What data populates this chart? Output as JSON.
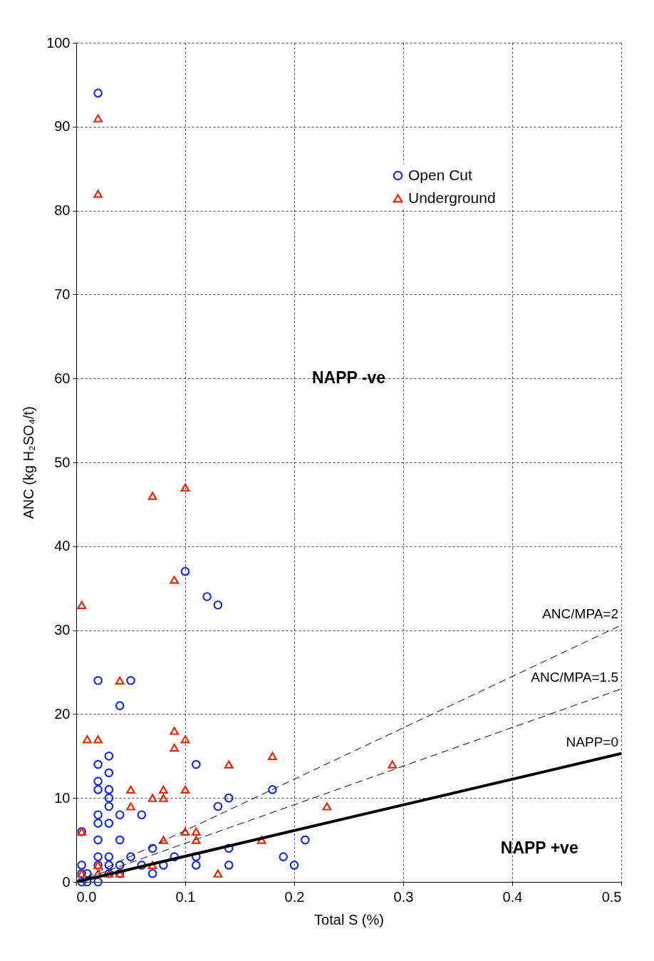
{
  "chart_data": {
    "type": "scatter",
    "xlabel": "Total S (%)",
    "ylabel": "ANC (kg H₂SO₄/t)",
    "xlim": [
      0,
      0.5
    ],
    "ylim": [
      0,
      100
    ],
    "xticks": [
      {
        "value": 0,
        "label": "0.0"
      },
      0.1,
      0.2,
      0.3,
      0.4,
      0.5
    ],
    "yticks": [
      0,
      10,
      20,
      30,
      40,
      50,
      60,
      70,
      80,
      90,
      100
    ],
    "grid": true,
    "legend": "top right",
    "annotations": [
      "NAPP -ve",
      "NAPP +ve"
    ],
    "series": [
      {
        "name": "Open Cut",
        "color": "#1a2fe0",
        "marker": "circle",
        "x": [
          0.02,
          0.1,
          0.12,
          0.13,
          0.02,
          0.05,
          0.04,
          0.03,
          0.02,
          0.11,
          0.03,
          0.02,
          0.02,
          0.03,
          0.03,
          0.14,
          0.18,
          0.03,
          0.13,
          0.02,
          0.04,
          0.06,
          0.02,
          0.03,
          0.005,
          0.02,
          0.04,
          0.21,
          0.07,
          0.14,
          0.02,
          0.03,
          0.05,
          0.09,
          0.11,
          0.19,
          0.005,
          0.02,
          0.03,
          0.04,
          0.06,
          0.08,
          0.11,
          0.14,
          0.2,
          0.005,
          0.01,
          0.03,
          0.04,
          0.07,
          0.005,
          0.01,
          0.02
        ],
        "values": [
          94,
          37,
          34,
          33,
          24,
          24,
          21,
          15,
          14,
          14,
          13,
          12,
          11,
          11,
          10,
          10,
          11,
          9,
          9,
          8,
          8,
          8,
          7,
          7,
          6,
          5,
          5,
          5,
          4,
          4,
          3,
          3,
          3,
          3,
          3,
          3,
          2,
          2,
          2,
          2,
          2,
          2,
          2,
          2,
          2,
          1,
          1,
          1,
          1,
          1,
          0,
          0,
          0
        ]
      },
      {
        "name": "Underground",
        "color": "#e8290b",
        "marker": "triangle",
        "x": [
          0.02,
          0.02,
          0.07,
          0.1,
          0.09,
          0.005,
          0.04,
          0.01,
          0.02,
          0.09,
          0.09,
          0.1,
          0.14,
          0.18,
          0.29,
          0.05,
          0.08,
          0.1,
          0.07,
          0.08,
          0.05,
          0.23,
          0.005,
          0.1,
          0.11,
          0.11,
          0.08,
          0.17,
          0.02,
          0.07,
          0.02,
          0.03,
          0.04,
          0.005,
          0.13
        ],
        "values": [
          91,
          82,
          46,
          47,
          36,
          33,
          24,
          17,
          17,
          18,
          16,
          17,
          14,
          15,
          14,
          11,
          11,
          11,
          10,
          10,
          9,
          9,
          6,
          6,
          6,
          5,
          5,
          5,
          2,
          2,
          1,
          1,
          1,
          1,
          1
        ]
      },
      {
        "name": "ANC/MPA=2",
        "type": "line",
        "color": "#000000",
        "line_style": "dashed",
        "x": [
          0,
          0.5
        ],
        "values": [
          0,
          30.6
        ]
      },
      {
        "name": "ANC/MPA=1.5",
        "type": "line",
        "color": "#000000",
        "line_style": "dashed",
        "x": [
          0,
          0.5
        ],
        "values": [
          0,
          23
        ]
      },
      {
        "name": "NAPP=0",
        "type": "line",
        "color": "#000000",
        "line_style": "solid",
        "x": [
          0,
          0.5
        ],
        "values": [
          0,
          15.3
        ]
      }
    ]
  }
}
